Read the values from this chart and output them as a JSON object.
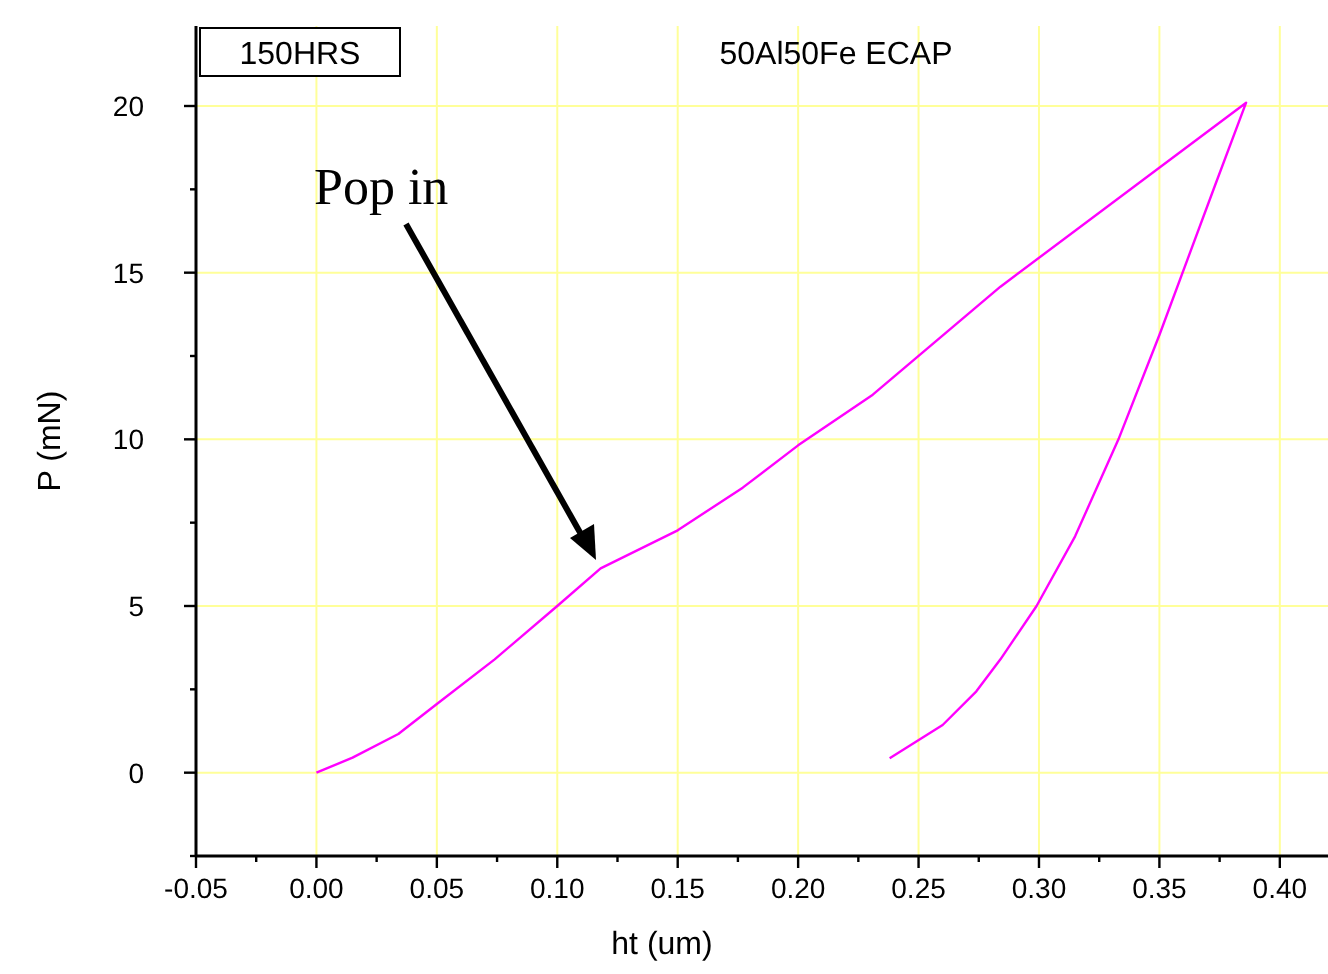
{
  "chart_data": {
    "type": "line",
    "title": "50Al50Fe ECAP",
    "xlabel": "ht (um)",
    "ylabel": "P (mN)",
    "annotations": [
      "150HRS",
      "Pop in"
    ],
    "series": [
      {
        "color": "#ff00ff",
        "x": [
          0,
          0.015,
          0.034,
          0.05,
          0.074,
          0.1,
          0.118,
          0.15,
          0.177,
          0.2,
          0.231,
          0.284,
          0.386,
          0.373,
          0.35,
          0.333,
          0.315,
          0.299,
          0.284,
          0.274,
          0.26,
          0.238
        ],
        "values": [
          0,
          0.45,
          1.16,
          2.06,
          3.4,
          5.0,
          6.13,
          7.27,
          8.55,
          9.82,
          11.34,
          14.58,
          20.1,
          17.6,
          13.13,
          10.0,
          7.09,
          5.0,
          3.4,
          2.44,
          1.43,
          0.43
        ]
      }
    ],
    "xlim": [
      -0.05,
      0.42
    ],
    "ylim": [
      -2.5,
      22.4
    ],
    "xticks": [
      {
        "value": -0.05,
        "label": "-0.05"
      },
      {
        "value": -0.025,
        "label": null
      },
      {
        "value": 0,
        "label": "0.00"
      },
      {
        "value": 0.025,
        "label": null
      },
      {
        "value": 0.05,
        "label": "0.05"
      },
      {
        "value": 0.075,
        "label": null
      },
      {
        "value": 0.1,
        "label": "0.10"
      },
      {
        "value": 0.125,
        "label": null
      },
      {
        "value": 0.15,
        "label": "0.15"
      },
      {
        "value": 0.175,
        "label": null
      },
      {
        "value": 0.2,
        "label": "0.20"
      },
      {
        "value": 0.225,
        "label": null
      },
      {
        "value": 0.25,
        "label": "0.25"
      },
      {
        "value": 0.275,
        "label": null
      },
      {
        "value": 0.3,
        "label": "0.30"
      },
      {
        "value": 0.325,
        "label": null
      },
      {
        "value": 0.35,
        "label": "0.35"
      },
      {
        "value": 0.375,
        "label": null
      },
      {
        "value": 0.4,
        "label": "0.40"
      }
    ],
    "yticks": [
      {
        "value": -2.5,
        "label": null
      },
      0,
      {
        "value": 2.5,
        "label": null
      },
      5,
      {
        "value": 7.5,
        "label": null
      },
      10,
      {
        "value": 12.5,
        "label": null
      },
      15,
      {
        "value": 17.5,
        "label": null
      },
      20
    ],
    "grid": true,
    "marker": "none",
    "line_style": "solid"
  }
}
